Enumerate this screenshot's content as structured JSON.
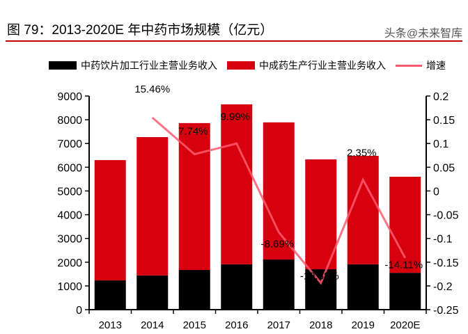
{
  "title": "图 79：2013-2020E 年中药市场规模（亿元）",
  "watermark": "头条@未来智库",
  "chart_data": {
    "type": "bar",
    "stacked": true,
    "categories": [
      "2013",
      "2014",
      "2015",
      "2016",
      "2017",
      "2018",
      "2019",
      "2020E"
    ],
    "series": [
      {
        "name": "中药饮片加工行业主营业务收入",
        "type": "bar",
        "color": "#000000",
        "values": [
          1230,
          1440,
          1670,
          1910,
          2110,
          1700,
          1910,
          1550
        ]
      },
      {
        "name": "中成药生产行业主营业务收入",
        "type": "bar",
        "color": "#d7000f",
        "values": [
          5070,
          5830,
          6190,
          6740,
          5780,
          4630,
          4570,
          4050
        ]
      },
      {
        "name": "增速",
        "type": "line",
        "axis": "right",
        "color": "#ff5a6e",
        "values": [
          null,
          0.1546,
          0.0774,
          0.0999,
          -0.0869,
          -0.1938,
          0.0235,
          -0.1411
        ],
        "labels": [
          "",
          "15.46%",
          "7.74%",
          "9.99%",
          "-8.69%",
          "-19.38%",
          "2.35%",
          "-14.11%"
        ]
      }
    ],
    "ylim": [
      0,
      9000
    ],
    "yticks": [
      "0",
      "1000",
      "2000",
      "3000",
      "4000",
      "5000",
      "6000",
      "7000",
      "8000",
      "9000"
    ],
    "y2lim": [
      -0.25,
      0.2
    ],
    "y2ticks": [
      "-0.25",
      "-0.2",
      "-0.15",
      "-0.1",
      "-0.05",
      "0",
      "0.05",
      "0.1",
      "0.15",
      "0.2"
    ],
    "legend": "top",
    "grid": false
  }
}
